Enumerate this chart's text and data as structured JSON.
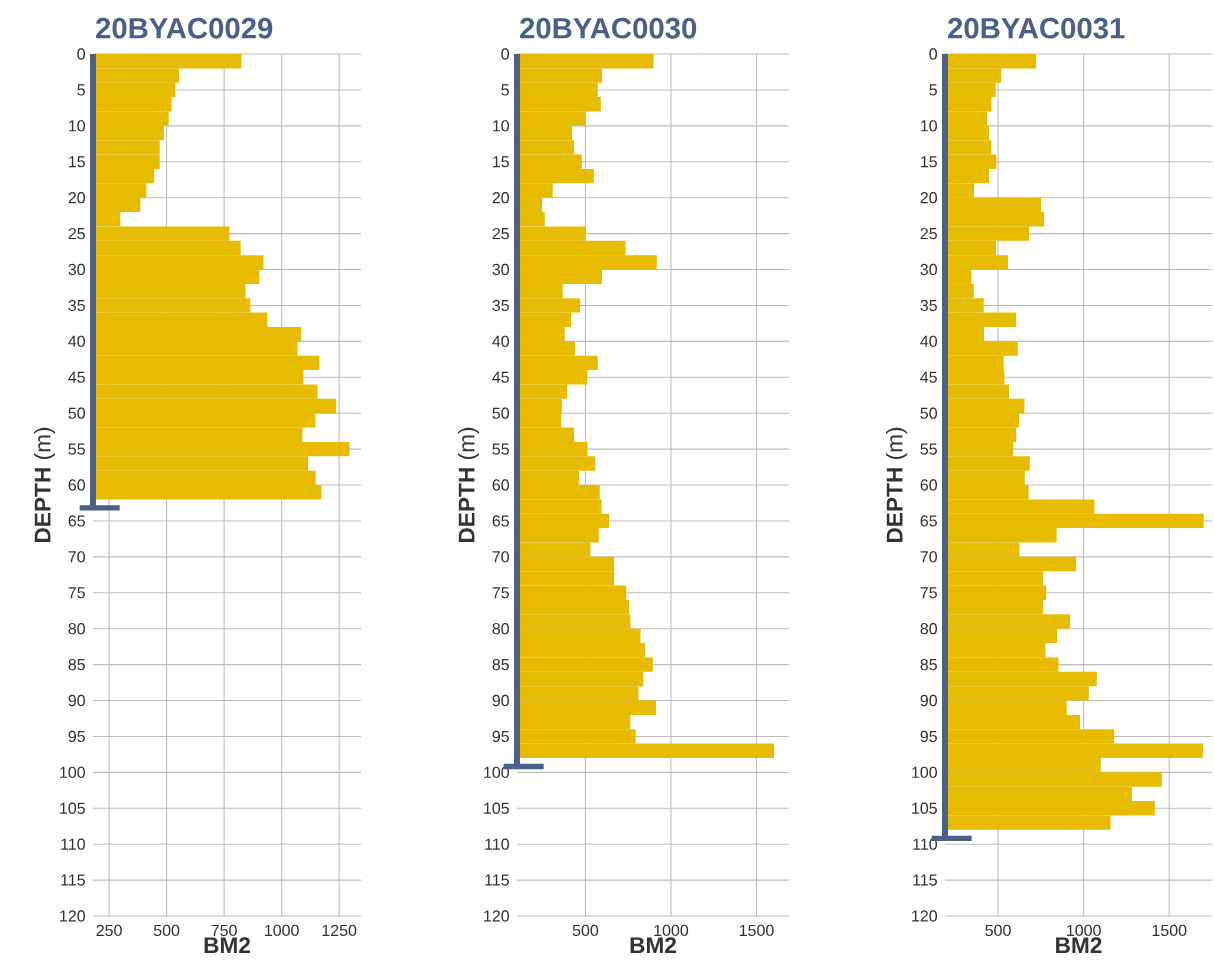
{
  "chart_data": [
    {
      "type": "bar",
      "orientation": "horizontal",
      "title": "20BYAC0029",
      "xlabel": "BM2",
      "ylabel": "**DEPTH** (m)",
      "grid": true,
      "xlim": [
        180,
        1345
      ],
      "xticks": [
        250,
        500,
        750,
        1000,
        1250
      ],
      "ylim": [
        120,
        0
      ],
      "yticks": [
        0,
        5,
        10,
        15,
        20,
        25,
        30,
        35,
        40,
        45,
        50,
        55,
        60,
        65,
        70,
        75,
        80,
        85,
        90,
        95,
        100,
        105,
        110,
        115,
        120
      ],
      "x": [
        1,
        3,
        5,
        7,
        9,
        11,
        13,
        15,
        17,
        19,
        21,
        23,
        25,
        27,
        29,
        31,
        33,
        35,
        37,
        39,
        41,
        43,
        45,
        47,
        49,
        51,
        53,
        55,
        57,
        59,
        61
      ],
      "series": [
        {
          "color": "#e6bb00",
          "values": [
            825,
            554,
            538,
            521,
            509,
            488,
            470,
            470,
            446,
            412,
            386,
            299,
            773,
            822,
            921,
            903,
            843,
            864,
            938,
            1085,
            1069,
            1164,
            1095,
            1156,
            1237,
            1147,
            1090,
            1295,
            1115,
            1148,
            1173
          ]
        },
        {
          "type": "line",
          "color": "#4a6089",
          "x": [
            0,
            63
          ],
          "values": [
            180,
            180
          ]
        }
      ]
    },
    {
      "type": "bar",
      "orientation": "horizontal",
      "title": "20BYAC0030",
      "xlabel": "BM2",
      "ylabel": "**DEPTH** (m)",
      "grid": true,
      "xlim": [
        100,
        1690
      ],
      "xticks": [
        500,
        1000,
        1500
      ],
      "ylim": [
        120,
        0
      ],
      "yticks": [
        0,
        5,
        10,
        15,
        20,
        25,
        30,
        35,
        40,
        45,
        50,
        55,
        60,
        65,
        70,
        75,
        80,
        85,
        90,
        95,
        100,
        105,
        110,
        115,
        120
      ],
      "x": [
        1,
        3,
        5,
        7,
        9,
        11,
        13,
        15,
        17,
        19,
        21,
        23,
        25,
        27,
        29,
        31,
        33,
        35,
        37,
        39,
        41,
        43,
        45,
        47,
        49,
        51,
        53,
        55,
        57,
        59,
        61,
        63,
        65,
        67,
        69,
        71,
        73,
        75,
        77,
        79,
        81,
        83,
        85,
        87,
        89,
        91,
        93,
        95,
        97
      ],
      "series": [
        {
          "color": "#e6bb00",
          "values": [
            898,
            597,
            572,
            590,
            500,
            422,
            434,
            479,
            549,
            309,
            247,
            262,
            498,
            734,
            917,
            597,
            367,
            469,
            416,
            379,
            440,
            572,
            510,
            393,
            362,
            358,
            434,
            512,
            557,
            463,
            584,
            594,
            638,
            578,
            529,
            668,
            668,
            738,
            755,
            763,
            822,
            849,
            894,
            839,
            810,
            913,
            763,
            794,
            1603
          ]
        },
        {
          "type": "line",
          "color": "#4a6089",
          "x": [
            0,
            99
          ],
          "values": [
            100,
            100
          ]
        }
      ]
    },
    {
      "type": "bar",
      "orientation": "horizontal",
      "title": "20BYAC0031",
      "xlabel": "BM2",
      "ylabel": "**DEPTH** (m)",
      "grid": true,
      "xlim": [
        190,
        1750
      ],
      "xticks": [
        500,
        1000,
        1500
      ],
      "ylim": [
        120,
        0
      ],
      "yticks": [
        0,
        5,
        10,
        15,
        20,
        25,
        30,
        35,
        40,
        45,
        50,
        55,
        60,
        65,
        70,
        75,
        80,
        85,
        90,
        95,
        100,
        105,
        110,
        115,
        120
      ],
      "x": [
        1,
        3,
        5,
        7,
        9,
        11,
        13,
        15,
        17,
        19,
        21,
        23,
        25,
        27,
        29,
        31,
        33,
        35,
        37,
        39,
        41,
        43,
        45,
        47,
        49,
        51,
        53,
        55,
        57,
        59,
        61,
        63,
        65,
        67,
        69,
        71,
        73,
        75,
        77,
        79,
        81,
        83,
        85,
        87,
        89,
        91,
        93,
        95,
        97,
        99,
        101,
        103,
        105,
        107
      ],
      "series": [
        {
          "color": "#e6bb00",
          "values": [
            722,
            519,
            486,
            461,
            436,
            447,
            461,
            490,
            447,
            360,
            751,
            769,
            681,
            488,
            558,
            344,
            358,
            416,
            606,
            418,
            615,
            533,
            537,
            564,
            654,
            623,
            606,
            588,
            685,
            656,
            679,
            1063,
            1701,
            842,
            625,
            956,
            763,
            781,
            763,
            921,
            845,
            777,
            853,
            1077,
            1030,
            901,
            979,
            1178,
            1697,
            1100,
            1457,
            1282,
            1416,
            1157
          ]
        },
        {
          "type": "line",
          "color": "#4a6089",
          "x": [
            0,
            109
          ],
          "values": [
            190,
            190
          ]
        }
      ]
    }
  ]
}
